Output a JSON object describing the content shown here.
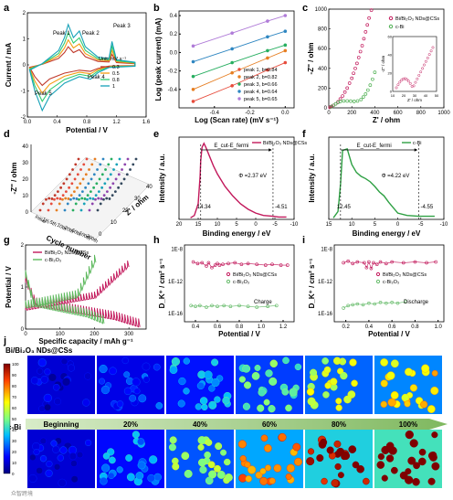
{
  "watermark": "众智跨境",
  "chart_data": [
    {
      "panel": "a",
      "type": "line",
      "xlabel": "Potential / V",
      "ylabel": "Current / mA",
      "xlim": [
        0,
        1.6
      ],
      "ylim": [
        -2,
        2
      ],
      "xticks": [
        "0.0",
        "0.4",
        "0.8",
        "1.2",
        "1.6"
      ],
      "yticks": [
        "-2",
        "-1",
        "0",
        "1",
        "2"
      ],
      "legend_title": "Unit: mV s⁻¹",
      "peak_labels": [
        "Peak 1",
        "Peak 2",
        "Peak 3",
        "Peak 4",
        "Peak 5"
      ],
      "series": [
        {
          "name": "0.3",
          "color": "#c0392b",
          "scale": 0.45
        },
        {
          "name": "0.5",
          "color": "#f39c12",
          "scale": 0.62
        },
        {
          "name": "0.8",
          "color": "#2ecc71",
          "scale": 0.8
        },
        {
          "name": "1",
          "color": "#17a2b8",
          "scale": 1.0
        }
      ],
      "anodic": [
        [
          0.2,
          0.05
        ],
        [
          0.42,
          0.55
        ],
        [
          0.5,
          1.05
        ],
        [
          0.55,
          1.55
        ],
        [
          0.62,
          1.05
        ],
        [
          0.7,
          1.3
        ],
        [
          0.78,
          0.7
        ],
        [
          0.95,
          0.3
        ],
        [
          1.1,
          0.25
        ],
        [
          1.14,
          0.9
        ],
        [
          1.2,
          0.2
        ],
        [
          1.45,
          0.1
        ]
      ],
      "cathodic": [
        [
          1.45,
          -0.05
        ],
        [
          1.1,
          -0.1
        ],
        [
          0.95,
          -0.3
        ],
        [
          0.85,
          -0.55
        ],
        [
          0.7,
          -0.45
        ],
        [
          0.5,
          -0.7
        ],
        [
          0.3,
          -1.2
        ],
        [
          0.2,
          -1.75
        ],
        [
          0.1,
          -1.0
        ],
        [
          0.03,
          -0.2
        ]
      ]
    },
    {
      "panel": "b",
      "type": "scatter",
      "xlabel": "Log (Scan rate) (mV s⁻¹)",
      "ylabel": "Log (peak current) (mA)",
      "xlim": [
        -0.6,
        0.05
      ],
      "ylim": [
        -0.6,
        0.45
      ],
      "xticks": [
        "-0.4",
        "-0.2",
        "0.0"
      ],
      "yticks": [
        "-0.4",
        "-0.2",
        "0.0",
        "0.2",
        "0.4"
      ],
      "x": [
        -0.52,
        -0.3,
        -0.1,
        0.0
      ],
      "series": [
        {
          "name": "peak 1, b=0.84",
          "color": "#e74c3c",
          "y": [
            -0.53,
            -0.36,
            -0.19,
            -0.11
          ]
        },
        {
          "name": "peak 2, b=0.82",
          "color": "#e67e22",
          "y": [
            -0.4,
            -0.22,
            -0.06,
            0.02
          ]
        },
        {
          "name": "peak 3, b=0.66",
          "color": "#27ae60",
          "y": [
            -0.26,
            -0.11,
            0.02,
            0.08
          ]
        },
        {
          "name": "peak 4, b=0.64",
          "color": "#2e86c1",
          "y": [
            -0.1,
            0.04,
            0.17,
            0.23
          ]
        },
        {
          "name": "peak 5, b=0.65",
          "color": "#b07cd8",
          "y": [
            0.07,
            0.21,
            0.34,
            0.4
          ]
        }
      ]
    },
    {
      "panel": "c",
      "type": "scatter",
      "xlabel": "Z' / ohm",
      "ylabel": "-Z'' / ohm",
      "xlim": [
        0,
        1000
      ],
      "ylim": [
        0,
        1000
      ],
      "xticks": [
        "0",
        "200",
        "400",
        "600",
        "800",
        "1000"
      ],
      "yticks": [
        "0",
        "200",
        "400",
        "600",
        "800",
        "1000"
      ],
      "series": [
        {
          "name": "Bi/Bi₂O₃ NDs@CSs",
          "color": "#c2185b",
          "x": [
            10,
            15,
            25,
            40,
            60,
            80,
            100,
            120,
            140,
            160,
            180,
            200,
            215,
            230,
            245,
            260,
            275,
            290,
            305,
            320,
            335,
            350,
            370
          ],
          "y": [
            5,
            10,
            15,
            25,
            40,
            60,
            90,
            120,
            160,
            200,
            250,
            300,
            350,
            400,
            450,
            510,
            570,
            630,
            700,
            770,
            840,
            910,
            990
          ]
        },
        {
          "name": "c-Bi",
          "color": "#4caf50",
          "x": [
            20,
            40,
            60,
            80,
            100,
            130,
            160,
            190,
            220,
            250,
            280,
            300,
            320,
            340,
            360,
            380,
            400
          ],
          "y": [
            10,
            25,
            40,
            55,
            65,
            70,
            70,
            68,
            65,
            70,
            85,
            110,
            140,
            180,
            230,
            290,
            360
          ]
        }
      ],
      "inset": {
        "xlabel": "Z' / ohm",
        "ylabel": "-Z'' / ohm",
        "xticks": [
          "10",
          "20",
          "30",
          "40",
          "50"
        ],
        "yticks": [
          "0",
          "20",
          "40",
          "60"
        ]
      }
    },
    {
      "panel": "d",
      "type": "scatter3d",
      "zlabel": "-Z'' / ohm",
      "xlabel": "Cycle number",
      "ylabel": "Z' / ohm",
      "zticks": [
        "0",
        "10",
        "20",
        "30",
        "40"
      ],
      "yticks": [
        "0",
        "10",
        "20",
        "30",
        "40"
      ],
      "cycle_labels": [
        "Initial",
        "1th",
        "5th",
        "10th",
        "20th",
        "50th",
        "100th",
        "200th"
      ],
      "colors": [
        "#c0392b",
        "#e74c3c",
        "#e67e22",
        "#2e86c1",
        "#27ae60",
        "#17a2b8",
        "#8e44ad",
        "#34495e"
      ]
    },
    {
      "panel": "e",
      "type": "line",
      "xlabel": "Binding energy / eV",
      "ylabel": "Intensity / a.u.",
      "xlim": [
        20,
        -10
      ],
      "xticks": [
        "20",
        "15",
        "10",
        "5",
        "0",
        "-5",
        "-10"
      ],
      "legend": "Bi/Bi₂O₃ NDs@CSs",
      "line_color": "#c2185b",
      "cutoff_label": "E_cut-E_fermi",
      "work_function": "Φ =2.37 eV",
      "markers": [
        "14.34",
        "-4.51"
      ],
      "x": [
        17,
        16,
        15,
        14.5,
        14.34,
        14,
        13.5,
        13,
        12,
        11,
        10,
        9,
        8,
        6,
        4,
        2,
        0,
        -2,
        -4.51,
        -6,
        -8
      ],
      "y": [
        0.02,
        0.05,
        0.2,
        0.55,
        0.75,
        0.92,
        0.97,
        0.92,
        0.8,
        0.68,
        0.58,
        0.5,
        0.42,
        0.3,
        0.2,
        0.13,
        0.08,
        0.05,
        0.04,
        0.03,
        0.03
      ]
    },
    {
      "panel": "f",
      "type": "line",
      "xlabel": "Binding energy / eV",
      "ylabel": "Intensity / a.u.",
      "xlim": [
        15,
        -10
      ],
      "xticks": [
        "15",
        "10",
        "5",
        "0",
        "-5",
        "-10"
      ],
      "legend": "c-Bi",
      "line_color": "#2ea043",
      "cutoff_label": "E_cut-E_fermi",
      "work_function": "Φ =4.22 eV",
      "markers": [
        "12.45",
        "-4.55"
      ],
      "x": [
        14,
        13,
        12.45,
        12,
        11,
        10,
        9,
        8,
        7,
        6,
        5,
        4,
        3,
        2,
        1,
        0,
        -2,
        -4.55,
        -6,
        -8
      ],
      "y": [
        0.02,
        0.1,
        0.45,
        0.88,
        0.9,
        0.7,
        0.6,
        0.55,
        0.52,
        0.48,
        0.42,
        0.35,
        0.3,
        0.22,
        0.15,
        0.08,
        0.05,
        0.04,
        0.04,
        0.04
      ]
    },
    {
      "panel": "g",
      "type": "line",
      "xlabel": "Specific capacity / mAh g⁻¹",
      "ylabel": "Potential / V",
      "xlim": [
        0,
        350
      ],
      "ylim": [
        0,
        2
      ],
      "xticks": [
        "0",
        "100",
        "200",
        "300"
      ],
      "yticks": [
        "0",
        "1",
        "2"
      ],
      "series": [
        {
          "name": "Bi/Bi₂O₃ NDs@CSs",
          "color": "#c2185b"
        },
        {
          "name": "c-Bi₂O₃",
          "color": "#5cb85c"
        }
      ]
    },
    {
      "panel": "h",
      "type": "scatter",
      "xlabel": "Potential / V",
      "ylabel": "D_K⁺ / cm² s⁻¹",
      "xlim": [
        0.3,
        1.3
      ],
      "xticks": [
        "0.4",
        "0.6",
        "0.8",
        "1.0",
        "1.2"
      ],
      "yticks": [
        "1E-8",
        "1E-12",
        "1E-16"
      ],
      "annotation": "Charge",
      "series": [
        {
          "name": "Bi/Bi₂O₃ NDs@CSs",
          "color": "#c2185b",
          "x": [
            0.38,
            0.42,
            0.46,
            0.5,
            0.52,
            0.55,
            0.58,
            0.6,
            0.62,
            0.65,
            0.7,
            0.76,
            0.82,
            0.88,
            0.96,
            1.04,
            1.1,
            1.18,
            1.24
          ],
          "logy": [
            -9.6,
            -9.8,
            -9.7,
            -10.1,
            -9.7,
            -10.3,
            -10.0,
            -9.8,
            -10.0,
            -9.9,
            -9.8,
            -9.7,
            -9.9,
            -9.8,
            -9.9,
            -10.0,
            -9.9,
            -10.0,
            -10.0
          ]
        },
        {
          "name": "c-Bi₂O₃",
          "color": "#66bb6a",
          "x": [
            0.36,
            0.4,
            0.44,
            0.5,
            0.55,
            0.6,
            0.66,
            0.72,
            0.8,
            0.88,
            0.96,
            1.06,
            1.14
          ],
          "logy": [
            -15.0,
            -15.1,
            -15.0,
            -15.2,
            -15.0,
            -15.1,
            -15.0,
            -15.1,
            -15.0,
            -15.1,
            -15.2,
            -15.1,
            -15.0
          ]
        }
      ]
    },
    {
      "panel": "i",
      "type": "scatter",
      "xlabel": "Potential / V",
      "ylabel": "D_K⁺ / cm² s⁻¹",
      "xlim": [
        0.1,
        1.05
      ],
      "xticks": [
        "0.2",
        "0.4",
        "0.6",
        "0.8",
        "1.0"
      ],
      "yticks": [
        "1E-8",
        "1E-12",
        "1E-16"
      ],
      "annotation": "Discharge",
      "series": [
        {
          "name": "Bi/Bi₂O₃ NDs@CSs",
          "color": "#c2185b",
          "x": [
            0.18,
            0.22,
            0.26,
            0.3,
            0.36,
            0.38,
            0.4,
            0.42,
            0.44,
            0.47,
            0.5,
            0.55,
            0.6,
            0.7,
            0.8,
            0.9,
            0.98
          ],
          "logy": [
            -9.7,
            -9.5,
            -9.8,
            -9.6,
            -9.7,
            -10.3,
            -9.6,
            -10.4,
            -9.7,
            -9.9,
            -9.6,
            -9.8,
            -9.6,
            -9.7,
            -9.6,
            -9.7,
            -9.6
          ]
        },
        {
          "name": "c-Bi₂O₃",
          "color": "#66bb6a",
          "x": [
            0.18,
            0.22,
            0.26,
            0.3,
            0.35,
            0.4,
            0.45,
            0.5,
            0.55,
            0.6,
            0.65,
            0.72
          ],
          "logy": [
            -15.3,
            -15.0,
            -14.9,
            -14.8,
            -14.9,
            -14.7,
            -14.8,
            -14.6,
            -14.7,
            -14.6,
            -14.7,
            -14.5
          ]
        }
      ]
    },
    {
      "panel": "j",
      "type": "heatmap",
      "top_label": "Bi/Bi₂O₃ NDs@CSs",
      "bottom_label": "c-Bi",
      "stages": [
        "Beginning",
        "20%",
        "40%",
        "60%",
        "80%",
        "100%"
      ],
      "colorbar_ticks": [
        "100",
        "90",
        "80",
        "70",
        "60",
        "50",
        "40",
        "30",
        "20",
        "10",
        "0"
      ],
      "top_levels": [
        0.02,
        0.12,
        0.25,
        0.38,
        0.5,
        0.6
      ],
      "bottom_levels": [
        0.02,
        0.22,
        0.45,
        0.7,
        0.88,
        1.0
      ]
    }
  ]
}
